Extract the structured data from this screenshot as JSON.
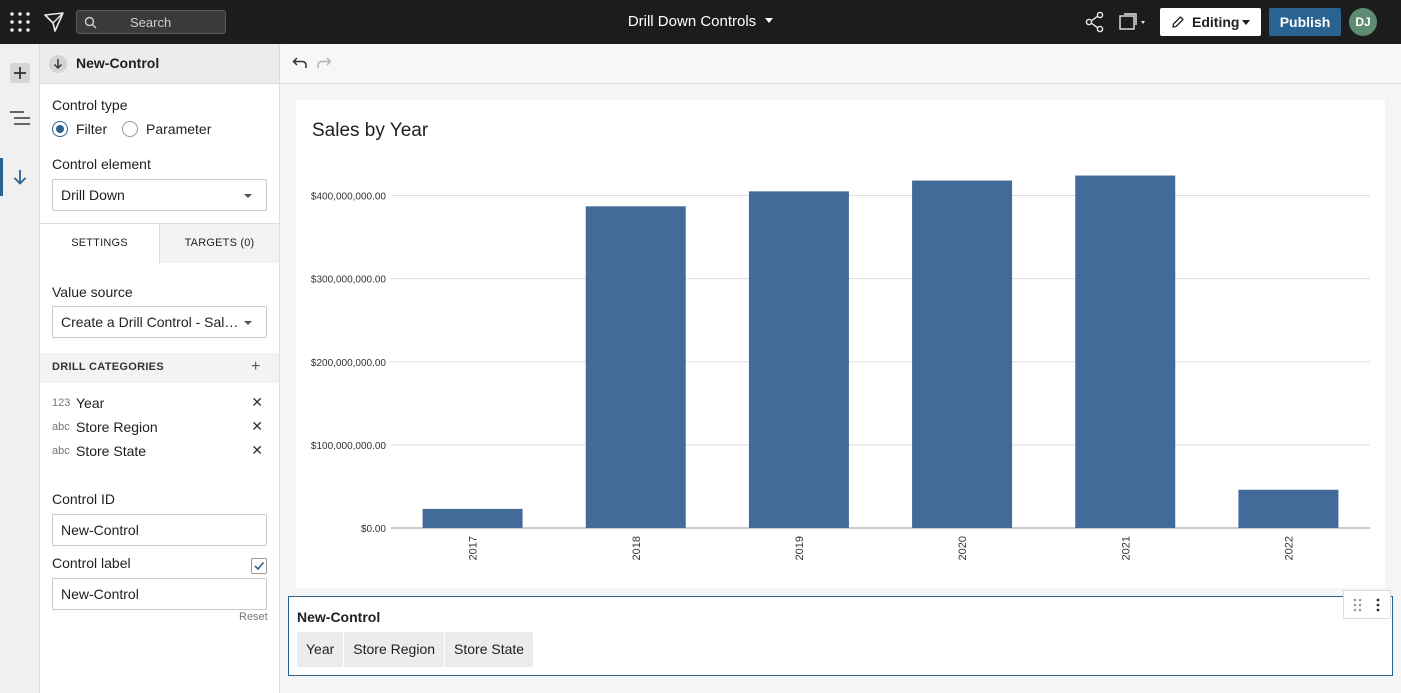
{
  "topbar": {
    "search_placeholder": "Search",
    "doc_title": "Drill Down Controls",
    "editing_label": "Editing",
    "publish_label": "Publish",
    "avatar_initials": "DJ"
  },
  "panel": {
    "header_title": "New-Control",
    "control_type_label": "Control type",
    "radio_filter_label": "Filter",
    "radio_parameter_label": "Parameter",
    "control_type_selected": "Filter",
    "control_element_label": "Control element",
    "control_element_value": "Drill Down",
    "tab_settings": "SETTINGS",
    "tab_targets": "TARGETS (0)",
    "value_source_label": "Value source",
    "value_source_value": "Create a Drill Control - Sales by Year",
    "drill_categories_label": "DRILL CATEGORIES",
    "categories": [
      {
        "type": "123",
        "name": "Year"
      },
      {
        "type": "abc",
        "name": "Store Region"
      },
      {
        "type": "abc",
        "name": "Store State"
      }
    ],
    "control_id_label": "Control ID",
    "control_id_value": "New-Control",
    "control_label_label": "Control label",
    "control_label_checked": true,
    "control_label_value": "New-Control",
    "reset_label": "Reset"
  },
  "chart_data": {
    "type": "bar",
    "title": "Sales by Year",
    "categories": [
      "2017",
      "2018",
      "2019",
      "2020",
      "2021",
      "2022"
    ],
    "values": [
      23000000,
      387000000,
      405000000,
      418000000,
      424000000,
      46000000
    ],
    "ylim": [
      0,
      400000000
    ],
    "ytick_labels": [
      "$0.00",
      "$100,000,000.00",
      "$200,000,000.00",
      "$300,000,000.00",
      "$400,000,000.00"
    ],
    "ytick_values": [
      0,
      100000000,
      200000000,
      300000000,
      400000000
    ],
    "xlabel": "",
    "ylabel": "",
    "grid": true,
    "bar_color": "#436b99"
  },
  "control_card": {
    "title": "New-Control",
    "drill_items": [
      "Year",
      "Store Region",
      "Store State"
    ]
  },
  "colors": {
    "accent": "#2a6290",
    "bar": "#436b99",
    "topbar": "#1c1c1c"
  }
}
